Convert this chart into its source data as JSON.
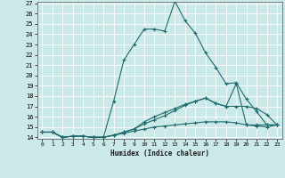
{
  "title": "",
  "xlabel": "Humidex (Indice chaleur)",
  "bg_color": "#cce9ea",
  "grid_color": "#ffffff",
  "line_color": "#1e6b6b",
  "xlim": [
    -0.5,
    23.5
  ],
  "ylim": [
    13.85,
    27.15
  ],
  "xticks": [
    0,
    1,
    2,
    3,
    4,
    5,
    6,
    7,
    8,
    9,
    10,
    11,
    12,
    13,
    14,
    15,
    16,
    17,
    18,
    19,
    20,
    21,
    22,
    23
  ],
  "yticks": [
    14,
    15,
    16,
    17,
    18,
    19,
    20,
    21,
    22,
    23,
    24,
    25,
    26,
    27
  ],
  "line1_x": [
    0,
    1,
    2,
    3,
    4,
    5,
    6,
    7,
    8,
    9,
    10,
    11,
    12,
    13,
    14,
    15,
    16,
    17,
    18,
    19,
    20,
    21,
    22,
    23
  ],
  "line1_y": [
    14.5,
    14.5,
    14.0,
    14.1,
    14.1,
    14.0,
    14.0,
    17.5,
    21.5,
    23.0,
    24.5,
    24.5,
    24.3,
    27.2,
    25.3,
    24.1,
    22.2,
    20.8,
    19.2,
    19.3,
    17.7,
    16.5,
    15.2,
    15.2
  ],
  "line2_x": [
    0,
    1,
    2,
    3,
    4,
    5,
    6,
    7,
    8,
    9,
    10,
    11,
    12,
    13,
    14,
    15,
    16,
    17,
    18,
    19,
    20,
    21,
    22,
    23
  ],
  "line2_y": [
    14.5,
    14.5,
    14.0,
    14.1,
    14.1,
    14.0,
    14.0,
    14.2,
    14.5,
    14.8,
    15.3,
    15.7,
    16.1,
    16.6,
    17.1,
    17.5,
    17.8,
    17.3,
    17.0,
    17.0,
    17.0,
    16.8,
    16.2,
    15.2
  ],
  "line3_x": [
    0,
    1,
    2,
    3,
    4,
    5,
    6,
    7,
    8,
    9,
    10,
    11,
    12,
    13,
    14,
    15,
    16,
    17,
    18,
    19,
    20,
    21,
    22,
    23
  ],
  "line3_y": [
    14.5,
    14.5,
    14.0,
    14.1,
    14.1,
    14.0,
    14.0,
    14.2,
    14.5,
    14.8,
    15.5,
    16.0,
    16.4,
    16.8,
    17.2,
    17.5,
    17.8,
    17.3,
    17.0,
    19.2,
    15.2,
    15.2,
    15.2,
    15.2
  ],
  "line4_x": [
    0,
    1,
    2,
    3,
    4,
    5,
    6,
    7,
    8,
    9,
    10,
    11,
    12,
    13,
    14,
    15,
    16,
    17,
    18,
    19,
    20,
    21,
    22,
    23
  ],
  "line4_y": [
    14.5,
    14.5,
    14.0,
    14.1,
    14.1,
    14.0,
    14.0,
    14.2,
    14.4,
    14.6,
    14.8,
    15.0,
    15.1,
    15.2,
    15.3,
    15.4,
    15.5,
    15.5,
    15.5,
    15.4,
    15.2,
    15.1,
    15.0,
    15.2
  ]
}
